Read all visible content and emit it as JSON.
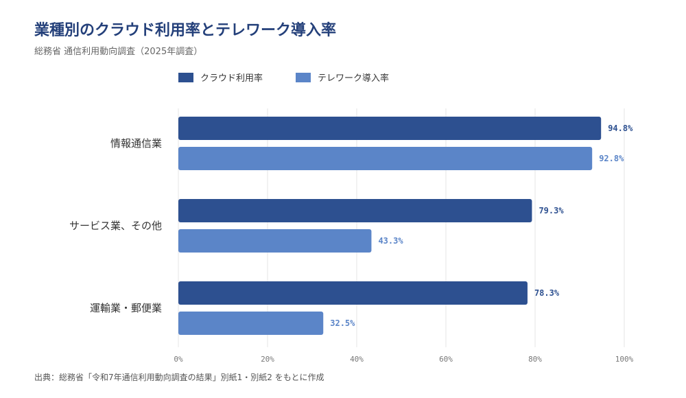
{
  "title": "業種別のクラウド利用率とテレワーク導入率",
  "subtitle": "総務省 通信利用動向調査（2025年調査）",
  "footer": "出典：総務省「令和7年通信利用動向調査の結果」別紙1・別紙2 をもとに作成",
  "colors": {
    "cloud": "#2d5090",
    "telework": "#5b85c8",
    "grid": "#e6e6e6"
  },
  "chart_data": {
    "type": "bar",
    "orientation": "horizontal",
    "categories": [
      "情報通信業",
      "サービス業、その他",
      "運輸業・郵便業"
    ],
    "series": [
      {
        "name": "クラウド利用率",
        "values": [
          94.8,
          79.3,
          78.3
        ],
        "labels": [
          "94.8%",
          "79.3%",
          "78.3%"
        ]
      },
      {
        "name": "テレワーク導入率",
        "values": [
          92.8,
          43.3,
          32.5
        ],
        "labels": [
          "92.8%",
          "43.3%",
          "32.5%"
        ]
      }
    ],
    "xlim": [
      0,
      100
    ],
    "xticks": [
      "0%",
      "20%",
      "40%",
      "60%",
      "80%",
      "100%"
    ],
    "grid": true,
    "legend_position": "top"
  }
}
